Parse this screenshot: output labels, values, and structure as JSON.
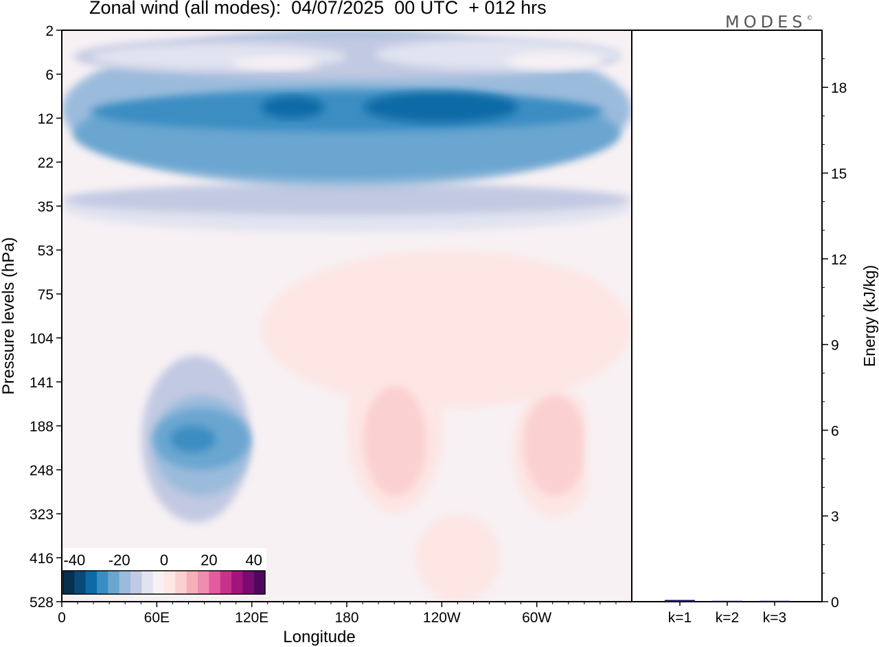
{
  "title": "Zonal wind (all modes):  04/07/2025  00 UTC  + 012 hrs",
  "logo": "MODES",
  "logo_mark": "©",
  "chart_data": [
    {
      "type": "heatmap",
      "name": "zonal-wind-section",
      "xlabel": "Longitude",
      "ylabel": "Pressure levels (hPa)",
      "x_ticks": [
        "0",
        "60E",
        "120E",
        "180",
        "120W",
        "60W"
      ],
      "y_ticks": [
        "2",
        "6",
        "12",
        "22",
        "35",
        "53",
        "75",
        "104",
        "141",
        "188",
        "248",
        "323",
        "416",
        "528"
      ],
      "colorbar": {
        "tick_labels": [
          "-40",
          "-20",
          "0",
          "20",
          "40"
        ],
        "min": -45,
        "max": 45,
        "step": 5,
        "colors": [
          "#08304f",
          "#0a4a78",
          "#0e6aa6",
          "#3a8dc2",
          "#6aa6d0",
          "#9bbbdc",
          "#c2c9e2",
          "#e1e3f0",
          "#f7f1f4",
          "#fde6e4",
          "#fbd0d0",
          "#f7b0b8",
          "#f08cb0",
          "#e25c9e",
          "#c8328a",
          "#a3147d",
          "#7a0a72",
          "#52075f"
        ]
      },
      "regions": [
        {
          "wind": -5,
          "bbox": [
            0,
            4,
            1,
            13
          ]
        },
        {
          "wind": -7,
          "bbox": [
            0,
            3.5,
            1,
            4.6
          ]
        },
        {
          "wind": -12,
          "bbox": [
            0,
            3.5,
            1,
            4.2
          ]
        },
        {
          "wind": -17,
          "bbox": [
            0,
            0,
            1,
            3.6
          ]
        },
        {
          "wind": -12,
          "bbox": [
            0.02,
            0.1,
            0.98,
            1.1
          ]
        },
        {
          "wind": -7,
          "bbox": [
            0.05,
            0.3,
            0.5,
            0.9
          ]
        },
        {
          "wind": -7,
          "bbox": [
            0.55,
            0.2,
            0.98,
            0.9
          ]
        },
        {
          "wind": -2,
          "bbox": [
            0.3,
            0.6,
            0.45,
            0.9
          ]
        },
        {
          "wind": -2,
          "bbox": [
            0.78,
            0.5,
            0.95,
            0.9
          ]
        },
        {
          "wind": -22,
          "bbox": [
            0.02,
            1.3,
            0.98,
            3.4
          ]
        },
        {
          "wind": -27,
          "bbox": [
            0.05,
            1.4,
            0.95,
            2.3
          ]
        },
        {
          "wind": -32,
          "bbox": [
            0.35,
            1.5,
            0.46,
            2.0
          ]
        },
        {
          "wind": -32,
          "bbox": [
            0.53,
            1.4,
            0.8,
            2.1
          ]
        },
        {
          "wind": 1,
          "bbox": [
            0.35,
            5,
            1,
            8.6
          ]
        },
        {
          "wind": 3,
          "bbox": [
            0.53,
            5.4,
            0.63,
            6.6
          ]
        },
        {
          "wind": 3,
          "bbox": [
            0.65,
            5.5,
            0.73,
            6.5
          ]
        },
        {
          "wind": 3,
          "bbox": [
            0.78,
            5.5,
            0.95,
            6.5
          ]
        },
        {
          "wind": -5,
          "bbox": [
            0.12,
            6.6,
            0.32,
            12.6
          ]
        },
        {
          "wind": -12,
          "bbox": [
            0.14,
            7.4,
            0.33,
            11.2
          ]
        },
        {
          "wind": -17,
          "bbox": [
            0.16,
            8.3,
            0.33,
            10.6
          ]
        },
        {
          "wind": -22,
          "bbox": [
            0.16,
            8.6,
            0.33,
            10.0
          ]
        },
        {
          "wind": -27,
          "bbox": [
            0.19,
            9.0,
            0.27,
            9.6
          ]
        },
        {
          "wind": 3,
          "bbox": [
            0.5,
            7.1,
            0.67,
            11.0
          ]
        },
        {
          "wind": 6,
          "bbox": [
            0.53,
            8.1,
            0.64,
            10.6
          ]
        },
        {
          "wind": 9,
          "bbox": [
            0.54,
            8.3,
            0.62,
            9.6
          ]
        },
        {
          "wind": 3,
          "bbox": [
            0.79,
            8.1,
            0.94,
            11.1
          ]
        },
        {
          "wind": 6,
          "bbox": [
            0.81,
            8.3,
            0.92,
            10.6
          ]
        },
        {
          "wind": 9,
          "bbox": [
            0.82,
            8.6,
            0.89,
            9.6
          ]
        },
        {
          "wind": -5,
          "bbox": [
            0.92,
            8.0,
            1.0,
            11.0
          ]
        },
        {
          "wind": -5,
          "bbox": [
            0.75,
            11.5,
            0.87,
            13
          ]
        },
        {
          "wind": 1,
          "bbox": [
            0.62,
            11.0,
            0.77,
            13
          ]
        }
      ]
    },
    {
      "type": "bar",
      "name": "energy-bars",
      "categories": [
        "k=1",
        "k=2",
        "k=3"
      ],
      "values": [
        0.06,
        0.03,
        0.03
      ],
      "ylabel": "Energy (kJ/kg)",
      "ylim": [
        0,
        20
      ],
      "y_ticks": [
        "0",
        "3",
        "6",
        "9",
        "12",
        "15",
        "18"
      ],
      "bar_color": "#14125e"
    }
  ]
}
